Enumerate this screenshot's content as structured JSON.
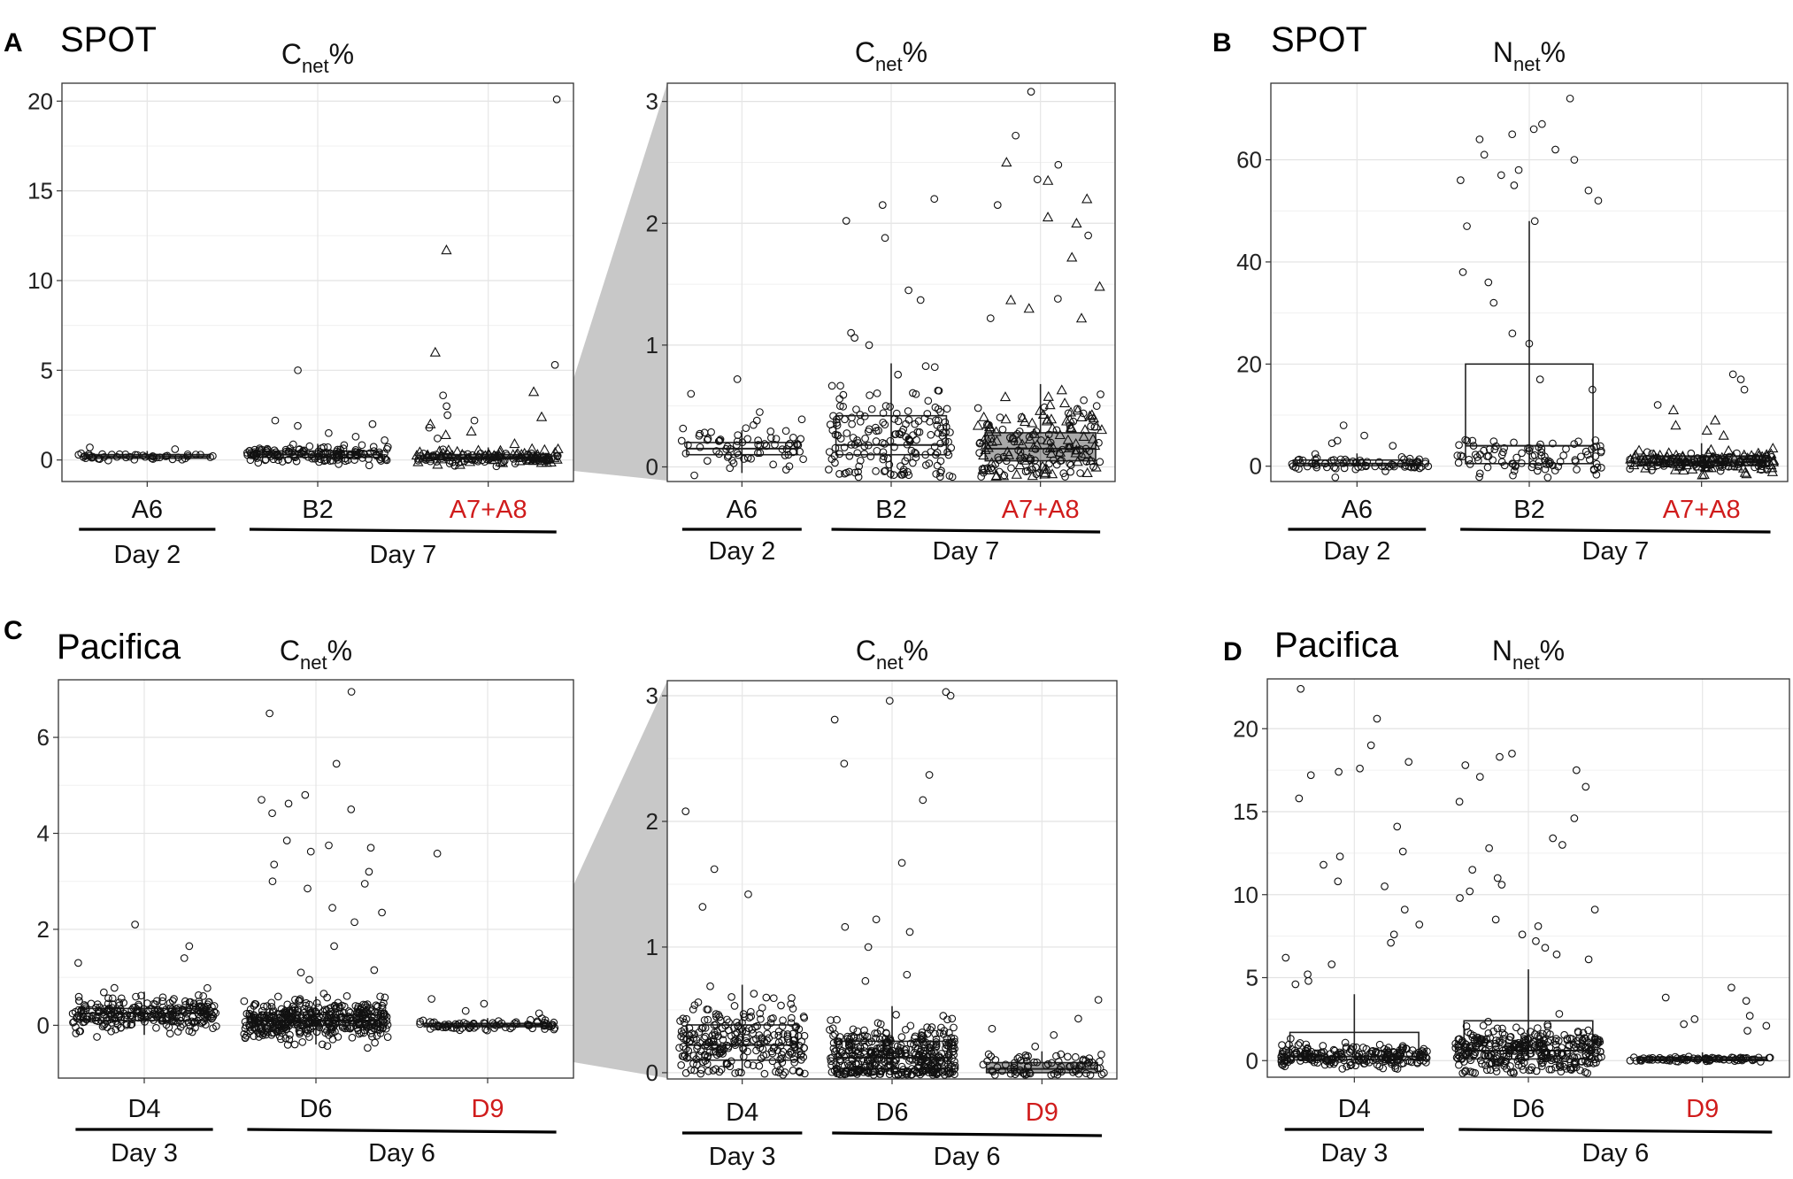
{
  "figure": {
    "panel_letters": [
      "A",
      "B",
      "C",
      "D"
    ],
    "group_spot": "SPOT",
    "group_pacifica": "Pacifica",
    "highlight_color": "#d01c1c",
    "zoom_fill": "#c8c8c8"
  },
  "chart_data": [
    {
      "id": "A1",
      "panel": "A",
      "type": "scatter",
      "title_main": "C",
      "title_sub": "net",
      "title_suffix": "%",
      "ylim": [
        -1.2,
        21
      ],
      "yticks": [
        0,
        5,
        10,
        15,
        20
      ],
      "categories": [
        "A6",
        "B2",
        "A7+A8"
      ],
      "highlight": [
        false,
        false,
        true
      ],
      "days": [
        {
          "label": "Day 2",
          "from": 0,
          "to": 0
        },
        {
          "label": "Day 7",
          "from": 1,
          "to": 2
        }
      ],
      "series": [
        {
          "cat": "A6",
          "marker": "circle",
          "n": 45,
          "center": 0.2,
          "spread": 0.1,
          "box": [
            0.1,
            0.2,
            0.3
          ],
          "whisker": [
            0.0,
            0.5
          ],
          "outliers": [
            0.7,
            0.6
          ]
        },
        {
          "cat": "B2",
          "marker": "circle",
          "n": 150,
          "center": 0.3,
          "spread": 0.25,
          "box": [
            0.15,
            0.3,
            0.5
          ],
          "whisker": [
            -0.1,
            0.9
          ],
          "outliers": [
            5.0,
            2.2,
            2.0,
            1.5,
            1.3,
            1.1,
            1.9
          ]
        },
        {
          "cat": "A7+A8",
          "marker": "circle",
          "n": 70,
          "center": 0.15,
          "spread": 0.2,
          "box": [
            0.05,
            0.15,
            0.3
          ],
          "whisker": [
            -0.1,
            0.7
          ],
          "outliers": [
            20.1,
            5.3,
            3.6,
            3.0,
            2.5,
            2.2,
            1.8,
            1.2
          ]
        },
        {
          "cat": "A7+A8",
          "marker": "triangle",
          "n": 70,
          "center": 0.2,
          "spread": 0.25,
          "box": [],
          "whisker": [],
          "outliers": [
            11.7,
            6.0,
            3.8,
            2.4,
            2.0,
            1.6,
            1.4
          ]
        }
      ]
    },
    {
      "id": "A2",
      "panel": "A",
      "type": "scatter",
      "title_main": "C",
      "title_sub": "net",
      "title_suffix": "%",
      "ylim": [
        -0.12,
        3.15
      ],
      "yticks": [
        0,
        1,
        2,
        3
      ],
      "categories": [
        "A6",
        "B2",
        "A7+A8"
      ],
      "highlight": [
        false,
        false,
        true
      ],
      "days": [
        {
          "label": "Day 2",
          "from": 0,
          "to": 0
        },
        {
          "label": "Day 7",
          "from": 1,
          "to": 2
        }
      ],
      "series": [
        {
          "cat": "A6",
          "marker": "circle",
          "n": 70,
          "center": 0.15,
          "spread": 0.1,
          "box": [
            0.1,
            0.15,
            0.2
          ],
          "whisker": [
            -0.05,
            0.3
          ],
          "outliers": [
            0.72,
            0.6,
            0.45
          ]
        },
        {
          "cat": "B2",
          "marker": "circle",
          "n": 170,
          "center": 0.25,
          "spread": 0.22,
          "box": [
            0.1,
            0.18,
            0.42
          ],
          "whisker": [
            -0.1,
            0.85
          ],
          "outliers": [
            2.2,
            2.15,
            2.02,
            1.88,
            1.45,
            1.37,
            1.1,
            1.06,
            1.0
          ]
        },
        {
          "cat": "A7+A8",
          "marker": "circle",
          "n": 90,
          "center": 0.15,
          "spread": 0.2,
          "box": [
            0.05,
            0.15,
            0.28
          ],
          "whisker": [
            -0.1,
            0.68
          ],
          "outliers": [
            3.08,
            2.72,
            2.48,
            2.36,
            2.15,
            1.9,
            1.38,
            1.22
          ]
        },
        {
          "cat": "A7+A8",
          "marker": "triangle",
          "n": 90,
          "center": 0.2,
          "spread": 0.22,
          "box": [],
          "whisker": [],
          "outliers": [
            2.5,
            2.35,
            2.2,
            2.05,
            2.0,
            1.72,
            1.48,
            1.37,
            1.3,
            1.22
          ]
        }
      ]
    },
    {
      "id": "B",
      "panel": "B",
      "type": "scatter",
      "title_main": "N",
      "title_sub": "net",
      "title_suffix": "%",
      "ylim": [
        -3,
        75
      ],
      "yticks": [
        0,
        20,
        40,
        60
      ],
      "categories": [
        "A6",
        "B2",
        "A7+A8"
      ],
      "highlight": [
        false,
        false,
        true
      ],
      "days": [
        {
          "label": "Day 2",
          "from": 0,
          "to": 0
        },
        {
          "label": "Day 7",
          "from": 1,
          "to": 2
        }
      ],
      "series": [
        {
          "cat": "A6",
          "marker": "circle",
          "n": 70,
          "center": 0.6,
          "spread": 0.8,
          "box": [
            0.1,
            0.5,
            1.2
          ],
          "whisker": [
            0,
            2.5
          ],
          "outliers": [
            8,
            6,
            5,
            4.5,
            4
          ]
        },
        {
          "cat": "B2",
          "marker": "circle",
          "n": 95,
          "center": 2,
          "spread": 2,
          "box": [
            0.5,
            4,
            20
          ],
          "whisker": [
            0,
            48
          ],
          "outliers": [
            72,
            67,
            66,
            65,
            64,
            62,
            61,
            60,
            58,
            57,
            56,
            55,
            54,
            52,
            48,
            47,
            38,
            36,
            32,
            26,
            24,
            17,
            15
          ]
        },
        {
          "cat": "A7+A8",
          "marker": "circle",
          "n": 90,
          "center": 0.8,
          "spread": 0.9,
          "box": [
            0.1,
            0.8,
            2
          ],
          "whisker": [
            0,
            4.5
          ],
          "outliers": [
            18,
            17,
            15,
            12
          ]
        },
        {
          "cat": "A7+A8",
          "marker": "triangle",
          "n": 90,
          "center": 1,
          "spread": 1.2,
          "box": [],
          "whisker": [],
          "outliers": [
            11,
            9,
            8,
            7,
            6
          ]
        }
      ]
    },
    {
      "id": "C1",
      "panel": "C",
      "type": "scatter",
      "title_main": "C",
      "title_sub": "net",
      "title_suffix": "%",
      "ylim": [
        -1.1,
        7.2
      ],
      "yticks": [
        0,
        2,
        4,
        6
      ],
      "categories": [
        "D4",
        "D6",
        "D9"
      ],
      "highlight": [
        false,
        false,
        true
      ],
      "days": [
        {
          "label": "Day 3",
          "from": 0,
          "to": 0
        },
        {
          "label": "Day 6",
          "from": 1,
          "to": 2
        }
      ],
      "series": [
        {
          "cat": "D4",
          "marker": "circle",
          "n": 260,
          "center": 0.25,
          "spread": 0.18,
          "box": [
            0.1,
            0.25,
            0.35
          ],
          "whisker": [
            -0.2,
            0.7
          ],
          "outliers": [
            2.1,
            1.65,
            1.4,
            1.3
          ]
        },
        {
          "cat": "D6",
          "marker": "circle",
          "n": 420,
          "center": 0.1,
          "spread": 0.2,
          "box": [
            0,
            0.1,
            0.22
          ],
          "whisker": [
            -0.4,
            0.6
          ],
          "outliers": [
            6.95,
            6.5,
            5.45,
            4.8,
            4.7,
            4.62,
            4.5,
            4.42,
            3.85,
            3.75,
            3.7,
            3.62,
            3.35,
            3.2,
            3.0,
            2.95,
            2.85,
            2.45,
            2.35,
            2.15,
            1.65,
            1.15,
            1.1,
            0.95
          ]
        },
        {
          "cat": "D9",
          "marker": "circle",
          "n": 75,
          "center": 0,
          "spread": 0.06,
          "box": [
            -0.03,
            0,
            0.04
          ],
          "whisker": [
            -0.1,
            0.15
          ],
          "outliers": [
            3.58,
            0.55,
            0.45,
            0.3,
            0.25
          ]
        }
      ]
    },
    {
      "id": "C2",
      "panel": "C",
      "type": "scatter",
      "title_main": "C",
      "title_sub": "net",
      "title_suffix": "%",
      "ylim": [
        -0.05,
        3.12
      ],
      "yticks": [
        0,
        1,
        2,
        3
      ],
      "categories": [
        "D4",
        "D6",
        "D9"
      ],
      "highlight": [
        false,
        false,
        true
      ],
      "days": [
        {
          "label": "Day 3",
          "from": 0,
          "to": 0
        },
        {
          "label": "Day 6",
          "from": 1,
          "to": 2
        }
      ],
      "series": [
        {
          "cat": "D4",
          "marker": "circle",
          "n": 260,
          "center": 0.25,
          "spread": 0.15,
          "box": [
            0.1,
            0.22,
            0.38
          ],
          "whisker": [
            0,
            0.7
          ],
          "outliers": [
            2.08,
            1.62,
            1.42,
            1.32
          ]
        },
        {
          "cat": "D6",
          "marker": "circle",
          "n": 420,
          "center": 0.12,
          "spread": 0.13,
          "box": [
            0.03,
            0.12,
            0.25
          ],
          "whisker": [
            0,
            0.53
          ],
          "outliers": [
            3.03,
            3.0,
            2.96,
            2.81,
            2.46,
            2.37,
            2.17,
            1.67,
            1.22,
            1.16,
            1.12,
            1.0,
            0.78,
            0.73
          ]
        },
        {
          "cat": "D9",
          "marker": "circle",
          "n": 80,
          "center": 0.05,
          "spread": 0.06,
          "box": [
            0,
            0.03,
            0.08
          ],
          "whisker": [
            0,
            0.17
          ],
          "outliers": [
            0.58,
            0.43,
            0.35,
            0.3
          ]
        }
      ]
    },
    {
      "id": "D",
      "panel": "D",
      "type": "scatter",
      "title_main": "N",
      "title_sub": "net",
      "title_suffix": "%",
      "ylim": [
        -1,
        23
      ],
      "yticks": [
        0,
        5,
        10,
        15,
        20
      ],
      "categories": [
        "D4",
        "D6",
        "D9"
      ],
      "highlight": [
        false,
        false,
        true
      ],
      "days": [
        {
          "label": "Day 3",
          "from": 0,
          "to": 0
        },
        {
          "label": "Day 6",
          "from": 1,
          "to": 2
        }
      ],
      "series": [
        {
          "cat": "D4",
          "marker": "circle",
          "n": 240,
          "center": 0.3,
          "spread": 0.35,
          "box": [
            0.05,
            0.25,
            1.7
          ],
          "whisker": [
            0,
            4
          ],
          "outliers": [
            22.4,
            20.6,
            19,
            18,
            17.6,
            17.4,
            17.2,
            15.8,
            14.1,
            12.6,
            12.3,
            11.8,
            10.8,
            10.5,
            9.1,
            8.2,
            7.6,
            7.1,
            6.2,
            5.8,
            5.2,
            4.8,
            4.6
          ]
        },
        {
          "cat": "D6",
          "marker": "circle",
          "n": 360,
          "center": 0.6,
          "spread": 0.7,
          "box": [
            0.1,
            0.6,
            2.4
          ],
          "whisker": [
            0,
            5.5
          ],
          "outliers": [
            18.5,
            18.3,
            17.8,
            17.5,
            17.1,
            16.5,
            15.6,
            14.6,
            13.4,
            13,
            12.8,
            11.5,
            11,
            10.6,
            10.2,
            9.8,
            9.1,
            8.5,
            8.1,
            7.6,
            7.2,
            6.8,
            6.4,
            6.1
          ]
        },
        {
          "cat": "D9",
          "marker": "circle",
          "n": 70,
          "center": 0.1,
          "spread": 0.08,
          "box": [
            0,
            0.08,
            0.2
          ],
          "whisker": [
            0,
            0.5
          ],
          "outliers": [
            4.4,
            3.8,
            3.6,
            2.7,
            2.5,
            2.2,
            2.1,
            1.8
          ]
        }
      ]
    }
  ]
}
